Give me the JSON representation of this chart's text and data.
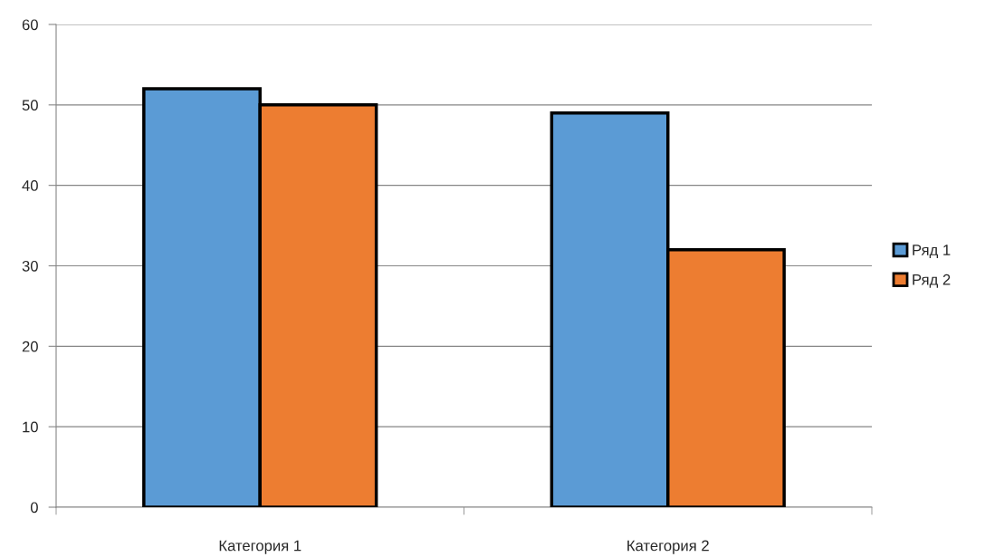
{
  "chart_data": {
    "type": "bar",
    "categories": [
      "Категория 1",
      "Категория 2"
    ],
    "series": [
      {
        "name": "Ряд 1",
        "color": "#5b9bd5",
        "values": [
          52,
          49
        ]
      },
      {
        "name": "Ряд 2",
        "color": "#ed7d31",
        "values": [
          50,
          32
        ]
      }
    ],
    "ylim": [
      0,
      60
    ],
    "yticks": [
      0,
      10,
      20,
      30,
      40,
      50,
      60
    ],
    "grid": "y",
    "legend": "right"
  }
}
